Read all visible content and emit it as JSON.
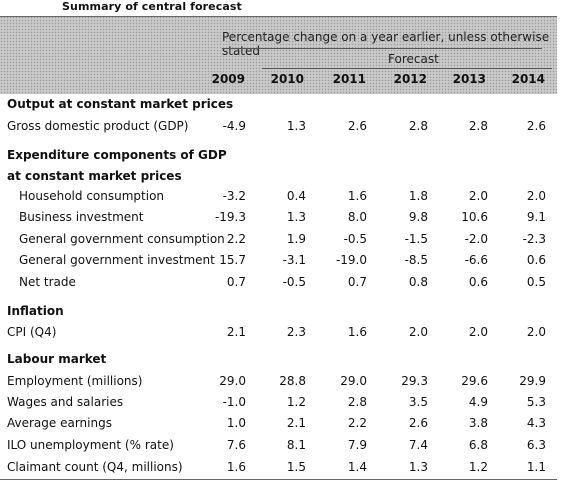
{
  "title": "Summary of central forecast",
  "header": {
    "note": "Percentage change on a year earlier, unless otherwise stated",
    "forecast_label": "Forecast",
    "years": [
      "2009",
      "2010",
      "2011",
      "2012",
      "2013",
      "2014"
    ]
  },
  "rows": [
    {
      "label": "Output at constant market prices",
      "type": "heading"
    },
    {
      "label": "Gross domestic product (GDP)",
      "type": "item",
      "values": [
        "-4.9",
        "1.3",
        "2.6",
        "2.8",
        "2.8",
        "2.6"
      ]
    },
    {
      "label": "Expenditure components of GDP",
      "type": "heading"
    },
    {
      "label": "at constant market prices",
      "type": "heading"
    },
    {
      "label": "Household consumption",
      "type": "sub",
      "values": [
        "-3.2",
        "0.4",
        "1.6",
        "1.8",
        "2.0",
        "2.0"
      ]
    },
    {
      "label": "Business investment",
      "type": "sub",
      "values": [
        "-19.3",
        "1.3",
        "8.0",
        "9.8",
        "10.6",
        "9.1"
      ]
    },
    {
      "label": "General government consumption",
      "type": "sub",
      "values": [
        "2.2",
        "1.9",
        "-0.5",
        "-1.5",
        "-2.0",
        "-2.3"
      ]
    },
    {
      "label": "General government investment",
      "type": "sub",
      "values": [
        "15.7",
        "-3.1",
        "-19.0",
        "-8.5",
        "-6.6",
        "0.6"
      ]
    },
    {
      "label": "Net trade",
      "type": "sub",
      "values": [
        "0.7",
        "-0.5",
        "0.7",
        "0.8",
        "0.6",
        "0.5"
      ]
    },
    {
      "label": "Inflation",
      "type": "heading"
    },
    {
      "label": "CPI (Q4)",
      "type": "item",
      "values": [
        "2.1",
        "2.3",
        "1.6",
        "2.0",
        "2.0",
        "2.0"
      ]
    },
    {
      "label": "Labour market",
      "type": "heading"
    },
    {
      "label": "Employment (millions)",
      "type": "item",
      "values": [
        "29.0",
        "28.8",
        "29.0",
        "29.3",
        "29.6",
        "29.9"
      ]
    },
    {
      "label": "Wages and salaries",
      "type": "item",
      "values": [
        "-1.0",
        "1.2",
        "2.8",
        "3.5",
        "4.9",
        "5.3"
      ]
    },
    {
      "label": "Average earnings",
      "type": "item",
      "values": [
        "1.0",
        "2.1",
        "2.2",
        "2.6",
        "3.8",
        "4.3"
      ]
    },
    {
      "label": "ILO unemployment (% rate)",
      "type": "item",
      "values": [
        "7.6",
        "8.1",
        "7.9",
        "7.4",
        "6.8",
        "6.3"
      ]
    },
    {
      "label": "Claimant count (Q4, millions)",
      "type": "item",
      "values": [
        "1.6",
        "1.5",
        "1.4",
        "1.3",
        "1.2",
        "1.1"
      ]
    }
  ]
}
